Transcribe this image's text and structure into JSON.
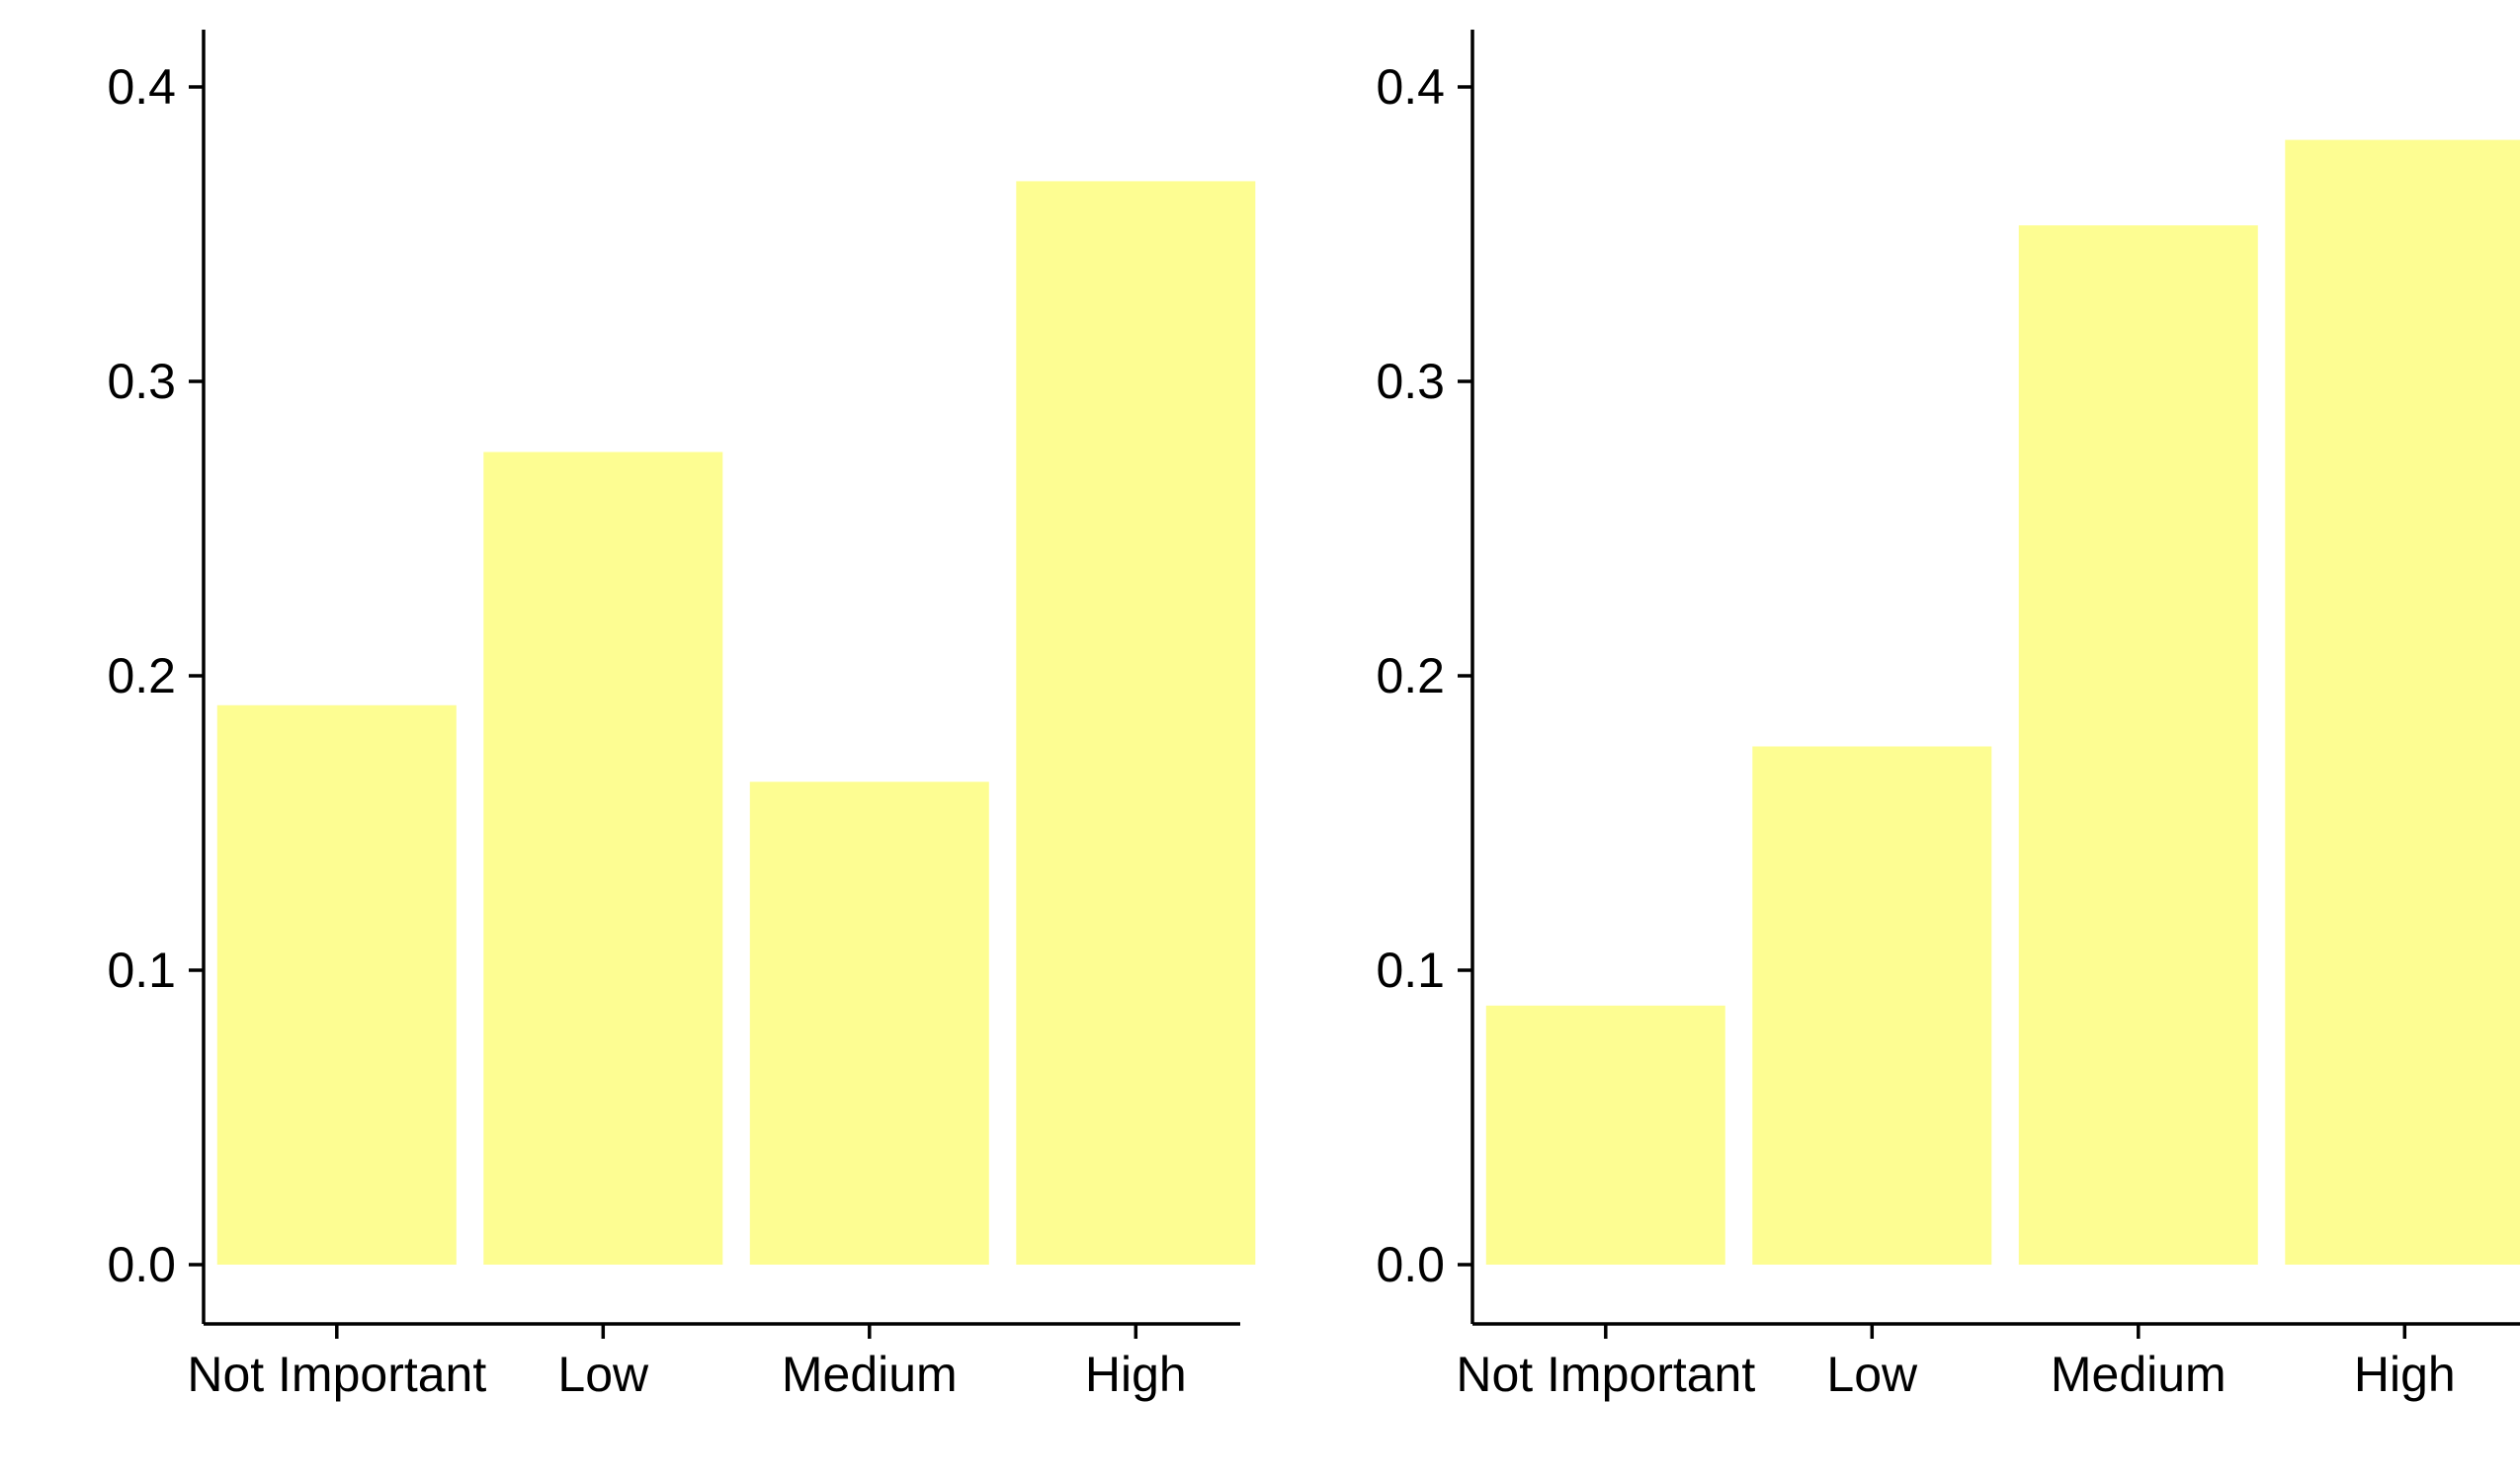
{
  "chart_data": [
    {
      "type": "bar",
      "categories": [
        "Not Important",
        "Low",
        "Medium",
        "High"
      ],
      "values": [
        0.19,
        0.276,
        0.164,
        0.368
      ],
      "ylim": [
        0,
        0.4
      ],
      "yticks": [
        "0.0",
        "0.1",
        "0.2",
        "0.3",
        "0.4"
      ],
      "title": "",
      "xlabel": "",
      "ylabel": "",
      "grid": false,
      "legend": "none",
      "bar_color": "#FDFD92"
    },
    {
      "type": "bar",
      "categories": [
        "Not Important",
        "Low",
        "Medium",
        "High"
      ],
      "values": [
        0.088,
        0.176,
        0.353,
        0.382
      ],
      "ylim": [
        0,
        0.4
      ],
      "yticks": [
        "0.0",
        "0.1",
        "0.2",
        "0.3",
        "0.4"
      ],
      "title": "",
      "xlabel": "",
      "ylabel": "",
      "grid": false,
      "legend": "none",
      "bar_color": "#FDFD92"
    }
  ]
}
